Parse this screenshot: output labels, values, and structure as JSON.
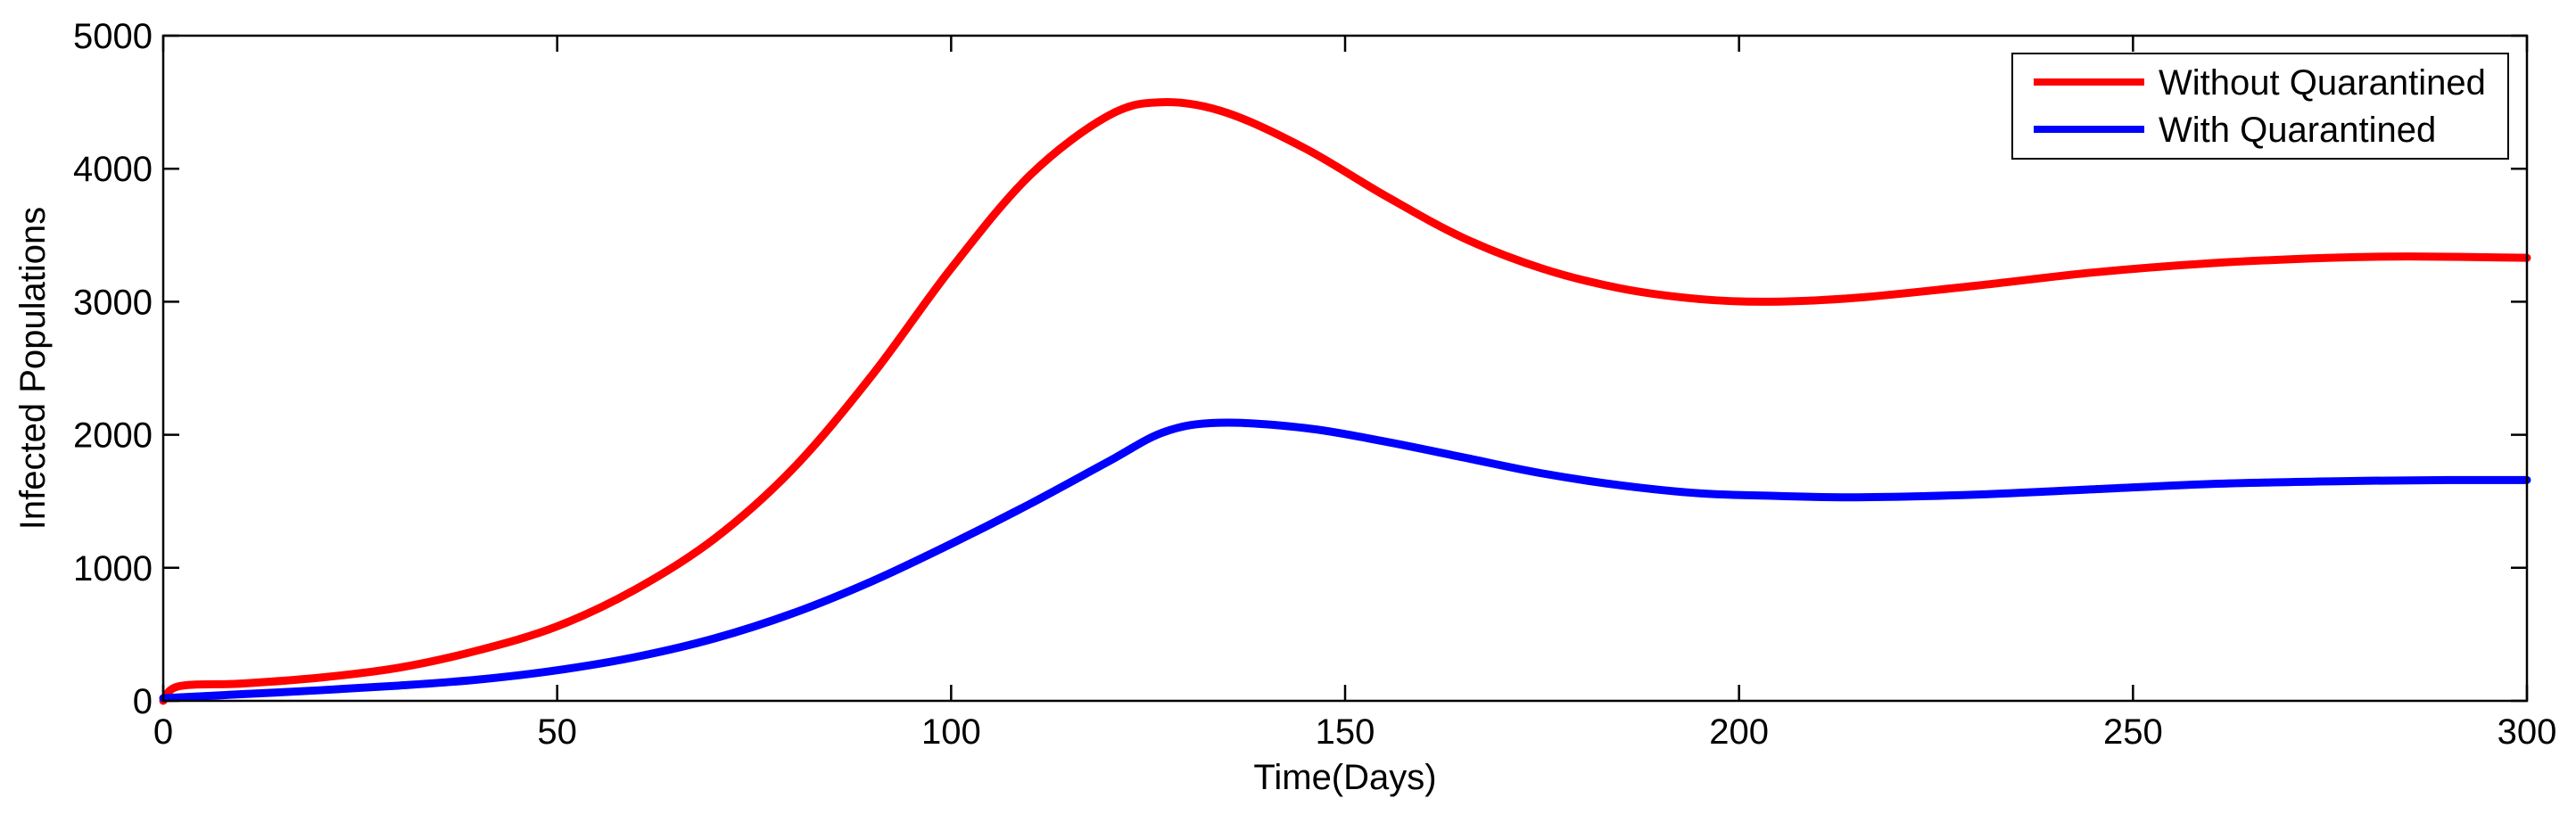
{
  "chart_data": {
    "type": "line",
    "title": "",
    "xlabel": "Time(Days)",
    "ylabel": "Infected Populations",
    "xlim": [
      0,
      300
    ],
    "ylim": [
      0,
      5000
    ],
    "xticks": [
      0,
      50,
      100,
      150,
      200,
      250,
      300
    ],
    "yticks": [
      0,
      1000,
      2000,
      3000,
      4000,
      5000
    ],
    "grid": false,
    "legend": {
      "placement": "top-right"
    },
    "series": [
      {
        "name": "Without Quarantined",
        "color": "#ff0000",
        "x": [
          0,
          2,
          10,
          20,
          30,
          40,
          50,
          60,
          70,
          80,
          90,
          100,
          110,
          120,
          127,
          135,
          145,
          155,
          165,
          175,
          185,
          195,
          204,
          215,
          230,
          245,
          260,
          275,
          285,
          300
        ],
        "y": [
          0,
          110,
          130,
          175,
          250,
          380,
          560,
          840,
          1220,
          1750,
          2450,
          3250,
          3950,
          4400,
          4500,
          4420,
          4150,
          3800,
          3480,
          3250,
          3100,
          3020,
          3000,
          3030,
          3120,
          3220,
          3290,
          3330,
          3340,
          3330
        ]
      },
      {
        "name": "With Quarantined",
        "color": "#0000ff",
        "x": [
          0,
          10,
          20,
          30,
          40,
          50,
          60,
          70,
          80,
          90,
          100,
          110,
          120,
          127,
          134,
          145,
          155,
          165,
          175,
          185,
          195,
          205,
          215,
          230,
          245,
          260,
          275,
          290,
          300
        ],
        "y": [
          20,
          50,
          80,
          115,
          160,
          230,
          330,
          470,
          660,
          900,
          1180,
          1480,
          1800,
          2020,
          2090,
          2050,
          1950,
          1830,
          1710,
          1620,
          1560,
          1540,
          1530,
          1550,
          1590,
          1630,
          1650,
          1660,
          1660
        ]
      }
    ]
  }
}
